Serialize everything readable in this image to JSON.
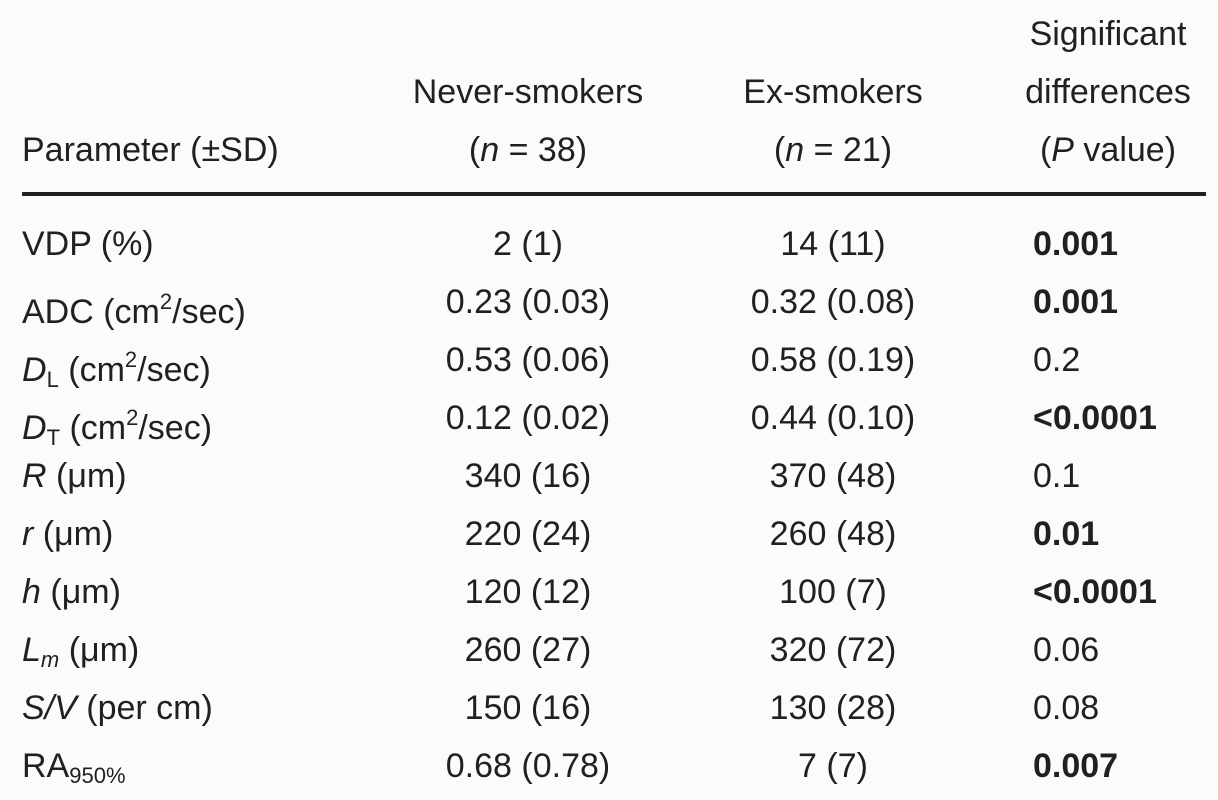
{
  "header": {
    "parameter": "Parameter (±SD)",
    "never": [
      "Never-smokers",
      "(",
      "n",
      " = 38)"
    ],
    "ex": [
      "Ex-smokers",
      "(",
      "n",
      " = 21)"
    ],
    "p": [
      "Significant",
      "differences",
      "(",
      "P",
      " value)"
    ]
  },
  "table": {
    "rows": [
      [
        [
          "VDP (%)"
        ],
        "2 (1)",
        "14 (11)",
        "0.001"
      ],
      [
        [
          "ADC (cm",
          "2",
          "/sec)"
        ],
        "0.23 (0.03)",
        "0.32 (0.08)",
        "0.001"
      ],
      [
        [
          "D",
          "L",
          " (cm",
          "2",
          "/sec)"
        ],
        "0.53 (0.06)",
        "0.58 (0.19)",
        "0.2"
      ],
      [
        [
          "D",
          "T",
          " (cm",
          "2",
          "/sec)"
        ],
        "0.12 (0.02)",
        "0.44 (0.10)",
        "<0.0001"
      ],
      [
        [
          "R",
          " (μm)"
        ],
        "340 (16)",
        "370 (48)",
        "0.1"
      ],
      [
        [
          "r",
          " (μm)"
        ],
        "220 (24)",
        "260 (48)",
        "0.01"
      ],
      [
        [
          "h",
          " (μm)"
        ],
        "120 (12)",
        "100 (7)",
        "<0.0001"
      ],
      [
        [
          "L",
          "m",
          " (μm)"
        ],
        "260 (27)",
        "320 (72)",
        "0.06"
      ],
      [
        [
          "S/V",
          " (per cm)"
        ],
        "150 (16)",
        "130 (28)",
        "0.08"
      ],
      [
        [
          "RA",
          "950%"
        ],
        "0.68 (0.78)",
        "7 (7)",
        "0.007"
      ]
    ]
  }
}
